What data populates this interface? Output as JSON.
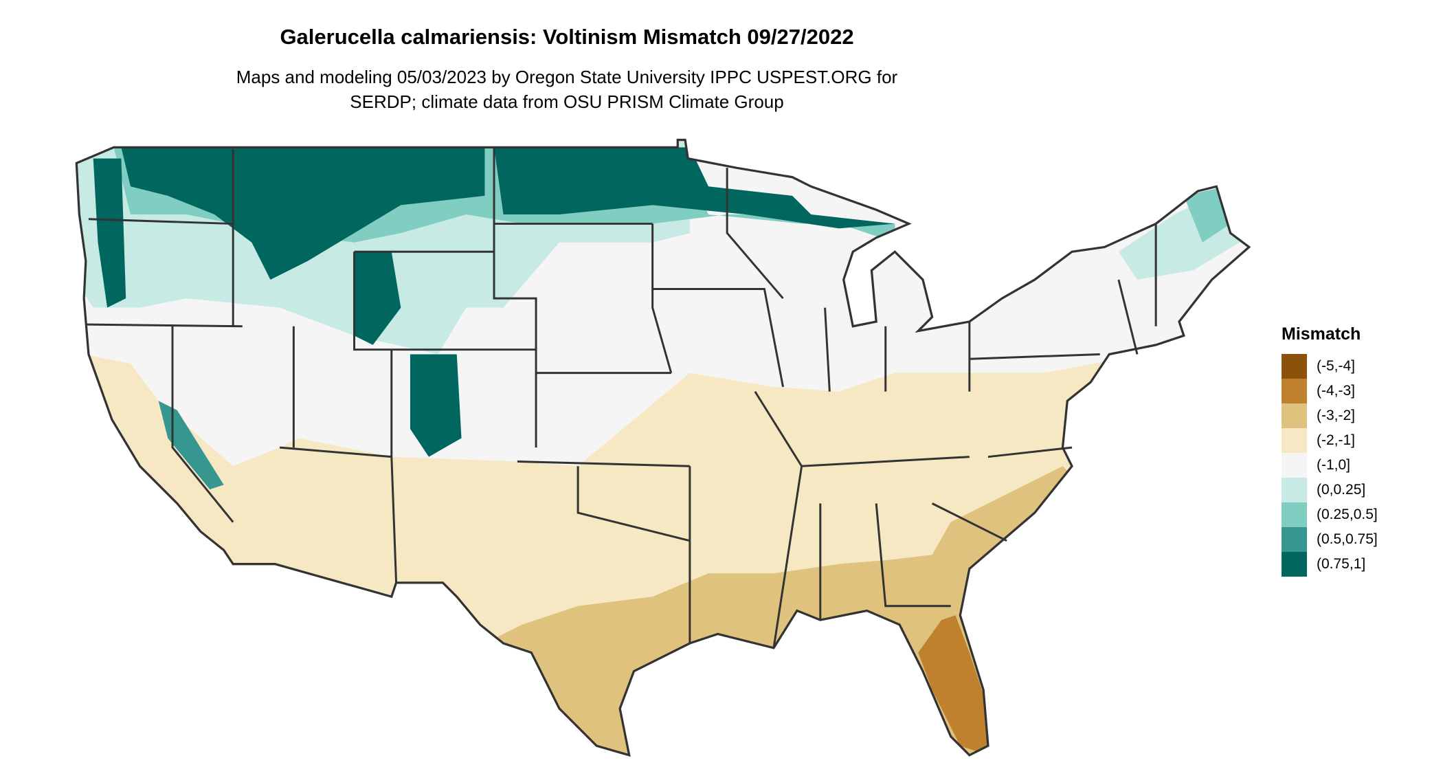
{
  "title": "Galerucella calmariensis: Voltinism Mismatch 09/27/2022",
  "subtitle": [
    "Maps and modeling 05/03/2023 by Oregon State University IPPC USPEST.ORG for",
    "SERDP; climate data from OSU PRISM Climate Group"
  ],
  "chart_data": {
    "type": "map",
    "region": "Contiguous United States",
    "legend": {
      "title": "Mismatch",
      "placement": "right",
      "items": [
        {
          "label": "(-5,-4]",
          "color": "#8c510a"
        },
        {
          "label": "(-4,-3]",
          "color": "#bf812d"
        },
        {
          "label": "(-3,-2]",
          "color": "#dfc27d"
        },
        {
          "label": "(-2,-1]",
          "color": "#f6e8c3"
        },
        {
          "label": "(-1,0]",
          "color": "#f5f5f5"
        },
        {
          "label": "(0,0.25]",
          "color": "#c7eae5"
        },
        {
          "label": "(0.25,0.5]",
          "color": "#80cdc1"
        },
        {
          "label": "(0.5,0.75]",
          "color": "#35978f"
        },
        {
          "label": "(0.75,1]",
          "color": "#01665e"
        }
      ]
    }
  }
}
